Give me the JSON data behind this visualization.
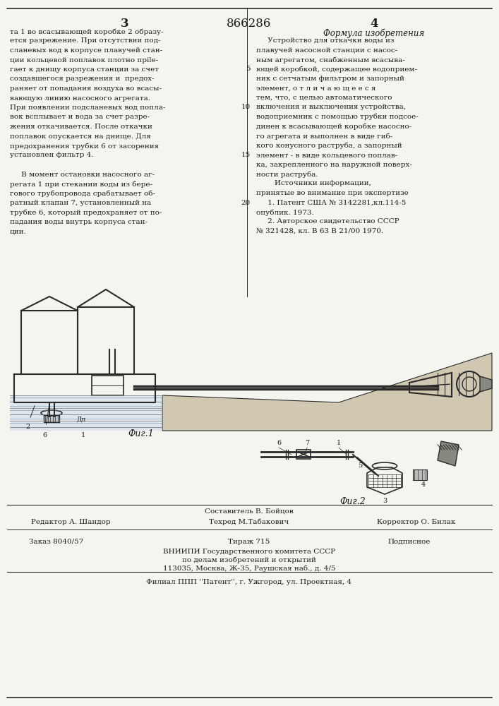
{
  "page_number_left": "3",
  "page_number_center": "866286",
  "page_number_right": "4",
  "left_column_text": [
    "та 1 во всасывающей коробке 2 образу-",
    "ется разрежение. При отсутствии под-",
    "сланевых вод в корпусе плавучей стан-",
    "ции кольцевой поплавок плотно прile-",
    "гает к днищу корпуса станции за счет",
    "создавшегося разрежения и  предох-",
    "раняет от попадания воздуха во всасы-",
    "вающую линию насосного агрегата.",
    "При появлении подсланевых вод попла-",
    "вок всплывает и вода за счет разре-",
    "жения откачивается. После откачки",
    "поплавок опускается на днище. Для",
    "предохранения трубки 6 от засорения",
    "установлен фильтр 4.",
    "",
    "     В момент остановки насосного аг-",
    "регата 1 при стекании воды из бере-",
    "гового трубопровода срабатывает об-",
    "ратный клапан 7, установленный на",
    "трубке 6, который предохраняет от по-",
    "падания воды внутрь корпуса стан-",
    "ции."
  ],
  "right_column_header": "Формула изобретения",
  "right_column_text": [
    "     Устройство для откачки воды из",
    "плавучей насосной станции с насос-",
    "ным агрегатом, снабженным всасыва-",
    "ющей коробкой, содержащее водоприем-",
    "ник с сетчатым фильтром и запорный",
    "элемент, о т л и ч а ю щ е е с я",
    "тем, что, с целью автоматического",
    "включения и выключения устройства,",
    "водоприемник с помощью трубки подсое-",
    "динен к всасывающей коробке насосно-",
    "го агрегата и выполнен в виде гиб-",
    "кого конусного раструба, а запорный",
    "элемент - в виде кольцевого поплав-",
    "ка, закрепленного на наружной поверх-",
    "ности раструба.",
    "        Источники информации,",
    "принятые во внимание при экспертизе",
    "     1. Патент США № 3142281,кл.114-5",
    "опублик. 1973.",
    "     2. Авторское свидетельство СССР",
    "№ 321428, кл. В 63 В 21/00 1970."
  ],
  "line_numbers_right": [
    "5",
    "10",
    "15",
    "20"
  ],
  "editor_line": "Редактор А. Шандор",
  "composer_label": "Составитель В. Бойцов",
  "techred_line": "Техред М.Табакович",
  "corrector_line": "Корректор О. Билак",
  "order_line": "Заказ 8040/57",
  "tirage_line": "Тираж 715",
  "podpisnoe_line": "Подписное",
  "vnipi_line1": "ВНИИПИ Государственного комитета СССР",
  "vnipi_line2": "по делам изобретений и открытий",
  "vnipi_line3": "113035, Москва, Ж-35, Раушская наб., д. 4/5",
  "filial_line": "Филиал ППП ''Патент'', г. Ужгород, ул. Проектная, 4",
  "fig1_label": "Фиг.1",
  "fig2_label": "Фиг.2",
  "fig1_parts": [
    "2",
    "6",
    "1",
    "Дп"
  ],
  "fig2_parts": [
    "6",
    "7",
    "1",
    "5",
    "3",
    "4"
  ],
  "bg_color": "#f5f5f0",
  "text_color": "#1a1a1a",
  "line_color": "#2a2a2a"
}
